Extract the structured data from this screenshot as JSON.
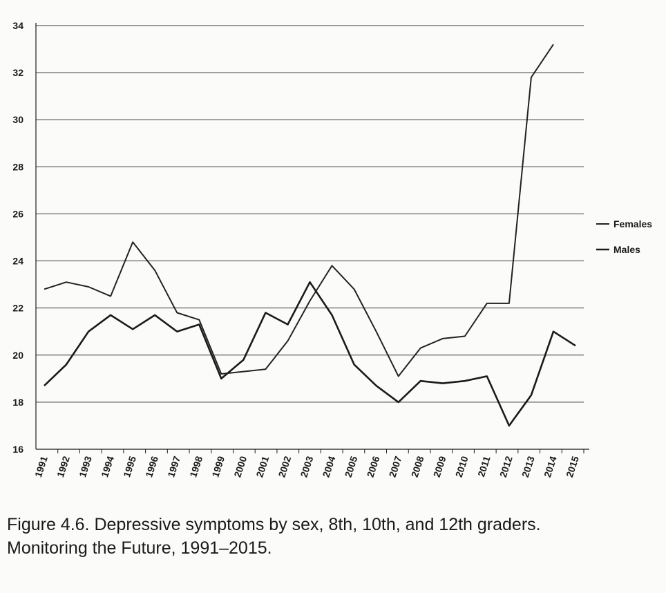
{
  "chart_data": {
    "type": "line",
    "title": "",
    "xlabel": "",
    "ylabel": "",
    "ylim": [
      16,
      34
    ],
    "yticks": [
      16,
      18,
      20,
      22,
      24,
      26,
      28,
      30,
      32,
      34
    ],
    "grid": true,
    "legend_position": "right",
    "x": [
      "1991",
      "1992",
      "1993",
      "1994",
      "1995",
      "1996",
      "1997",
      "1998",
      "1999",
      "2000",
      "2001",
      "2002",
      "2003",
      "2004",
      "2005",
      "2006",
      "2007",
      "2008",
      "2009",
      "2010",
      "2011",
      "2012",
      "2013",
      "2014",
      "2015"
    ],
    "series": [
      {
        "name": "Females",
        "color": "#222222",
        "values": [
          22.8,
          23.1,
          22.9,
          22.5,
          24.8,
          23.6,
          21.8,
          21.5,
          19.2,
          19.3,
          19.4,
          20.6,
          22.3,
          23.8,
          22.8,
          21.0,
          19.1,
          20.3,
          20.7,
          20.8,
          22.2,
          22.2,
          31.8,
          33.2,
          null
        ]
      },
      {
        "name": "Males",
        "color": "#1a1a1a",
        "values": [
          18.7,
          19.6,
          21.0,
          21.7,
          21.1,
          21.7,
          21.0,
          21.3,
          19.0,
          19.8,
          21.8,
          21.3,
          23.1,
          21.7,
          19.6,
          18.7,
          18.0,
          18.9,
          18.8,
          18.9,
          19.1,
          17.0,
          18.3,
          21.0,
          20.4
        ]
      }
    ]
  },
  "caption": {
    "line1": "Figure 4.6. Depressive symptoms by sex, 8th, 10th, and 12th graders.",
    "line2": "Monitoring the Future, 1991–2015."
  }
}
